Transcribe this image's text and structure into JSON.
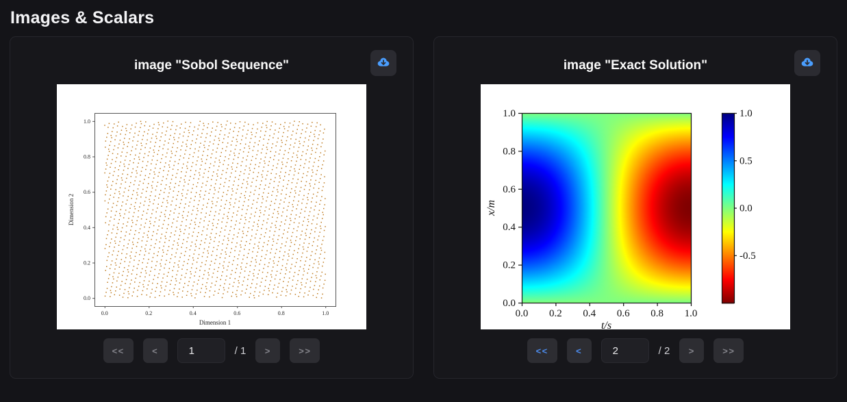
{
  "page": {
    "title": "Images & Scalars",
    "background": "#141418"
  },
  "colors": {
    "accent_blue": "#4d8df0",
    "card_background": "#17171b",
    "card_border": "#26262c",
    "button_background": "#2d2d32",
    "button_disabled_text": "#84848b",
    "download_icon_blue": "#4a9eff",
    "scatter_point_color": "#be7a1e"
  },
  "cards": [
    {
      "title": "image \"Sobol Sequence\"",
      "download_icon": "cloud-download-icon",
      "pagination": {
        "first": "<<",
        "prev": "<",
        "next": ">",
        "last": ">>",
        "page_value": "1",
        "total": "/ 1",
        "prev_enabled": false,
        "next_enabled": false
      }
    },
    {
      "title": "image \"Exact Solution\"",
      "download_icon": "cloud-download-icon",
      "pagination": {
        "first": "<<",
        "prev": "<",
        "next": ">",
        "last": ">>",
        "page_value": "2",
        "total": "/ 2",
        "prev_enabled": true,
        "next_enabled": false
      }
    }
  ],
  "chart_data": [
    {
      "type": "scatter",
      "title": "",
      "xlabel": "Dimension 1",
      "ylabel": "Dimension 2",
      "xlim": [
        0.0,
        1.0
      ],
      "ylim": [
        0.0,
        1.0
      ],
      "xticks": [
        0.0,
        0.2,
        0.4,
        0.6,
        0.8,
        1.0
      ],
      "yticks": [
        0.0,
        0.2,
        0.4,
        0.6,
        0.8,
        1.0
      ],
      "distribution": "sobol-quasirandom-unit-square",
      "num_points": 2048,
      "point_color": "#be7a1e",
      "marker_size_px": 1.5,
      "grid": false
    },
    {
      "type": "heatmap",
      "title": "",
      "xlabel": "t/s",
      "ylabel": "x/m",
      "xlim": [
        0.0,
        1.0
      ],
      "ylim": [
        0.0,
        1.0
      ],
      "xticks": [
        0.0,
        0.2,
        0.4,
        0.6,
        0.8,
        1.0
      ],
      "yticks": [
        0.0,
        0.2,
        0.4,
        0.6,
        0.8,
        1.0
      ],
      "value_function": "sin(pi*x)*cos(pi*t)",
      "vmin": -1.0,
      "vmax": 1.0,
      "colormap": "jet_reversed",
      "colorbar_ticks": [
        1.0,
        0.5,
        0.0,
        -0.5
      ],
      "grid": false
    }
  ]
}
